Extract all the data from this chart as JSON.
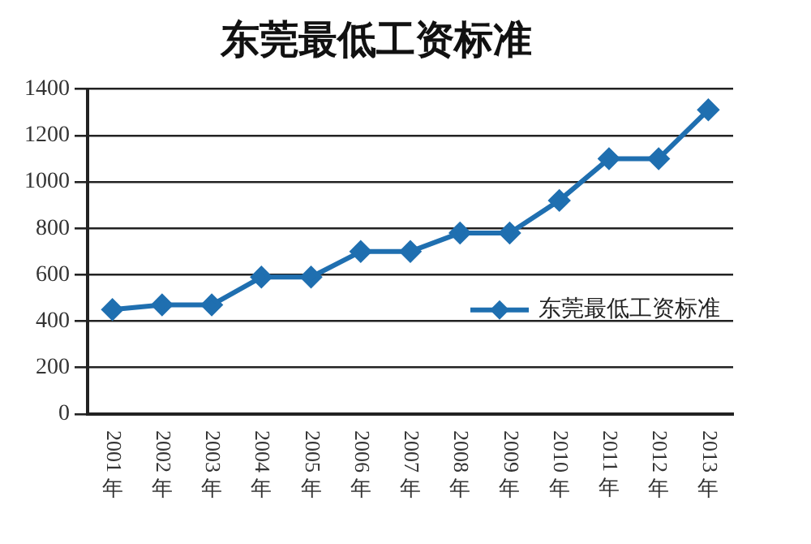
{
  "chart_data": {
    "type": "line",
    "title": "东莞最低工资标准",
    "categories": [
      "2001年",
      "2002年",
      "2003年",
      "2004年",
      "2005年",
      "2006年",
      "2007年",
      "2008年",
      "2009年",
      "2010年",
      "2011年",
      "2012年",
      "2013年"
    ],
    "series": [
      {
        "name": "东莞最低工资标准",
        "color": "#1f6fb0",
        "values": [
          450,
          470,
          470,
          590,
          590,
          700,
          700,
          780,
          780,
          920,
          1100,
          1100,
          1310
        ]
      }
    ],
    "ylim": [
      0,
      1400
    ],
    "yticks": [
      0,
      200,
      400,
      600,
      800,
      1000,
      1200,
      1400
    ],
    "grid": "y",
    "legend": "right",
    "marker": "diamond",
    "line_style": "solid"
  }
}
